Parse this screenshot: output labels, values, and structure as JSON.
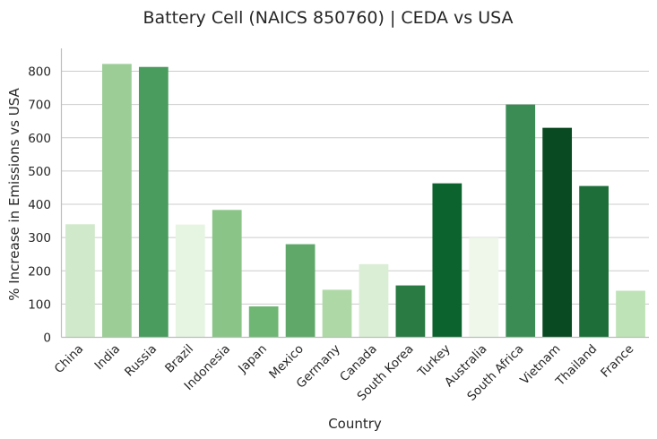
{
  "chart_data": {
    "type": "bar",
    "title": "Battery Cell (NAICS 850760) | CEDA vs USA",
    "xlabel": "Country",
    "ylabel": "% Increase in Emissions vs USA",
    "categories": [
      "China",
      "India",
      "Russia",
      "Brazil",
      "Indonesia",
      "Japan",
      "Mexico",
      "Germany",
      "Canada",
      "South Korea",
      "Turkey",
      "Australia",
      "South Africa",
      "Vietnam",
      "Thailand",
      "France"
    ],
    "values": [
      340,
      822,
      813,
      339,
      383,
      93,
      280,
      143,
      220,
      156,
      463,
      300,
      700,
      630,
      455,
      140
    ],
    "colors": [
      "#d0e9cb",
      "#9ccd97",
      "#4a9b5e",
      "#e6f4e2",
      "#8ac487",
      "#6fb674",
      "#5fa86a",
      "#aed9a7",
      "#d9eed4",
      "#2a7a44",
      "#0d632e",
      "#eef7ea",
      "#3b8c54",
      "#0a4a22",
      "#1d6e39",
      "#bee3b6"
    ],
    "yticks": [
      0,
      100,
      200,
      300,
      400,
      500,
      600,
      700,
      800
    ],
    "ylim": [
      0,
      865
    ],
    "grid": true,
    "legend": false
  }
}
